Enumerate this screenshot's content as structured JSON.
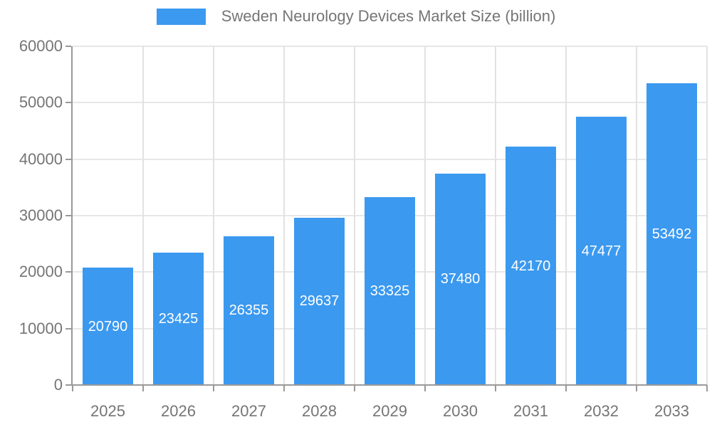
{
  "chart_data": {
    "type": "bar",
    "title": "Sweden Neurology Devices Market Size (billion)",
    "categories": [
      "2025",
      "2026",
      "2027",
      "2028",
      "2029",
      "2030",
      "2031",
      "2032",
      "2033"
    ],
    "values": [
      20790,
      23425,
      26355,
      29637,
      33325,
      37480,
      42170,
      47477,
      53492
    ],
    "value_labels": [
      "20790",
      "23425",
      "26355",
      "29637",
      "33325",
      "37480",
      "42170",
      "47477",
      "53492"
    ],
    "xlabel": "",
    "ylabel": "",
    "ylim": [
      0,
      60000
    ],
    "ytick_labels": [
      "0",
      "10000",
      "20000",
      "30000",
      "40000",
      "50000",
      "60000"
    ],
    "grid": true,
    "legend_position": "top-center",
    "value_labels_inside_bars": true,
    "colors": {
      "bar": "#3B99EF",
      "value_label": "#FFFFFF",
      "axis_text": "#757575",
      "axis_line": "#999999",
      "grid_horizontal": "#E7E7E7",
      "grid_vertical": "#E2E2E2",
      "background": "#FFFFFF"
    }
  }
}
